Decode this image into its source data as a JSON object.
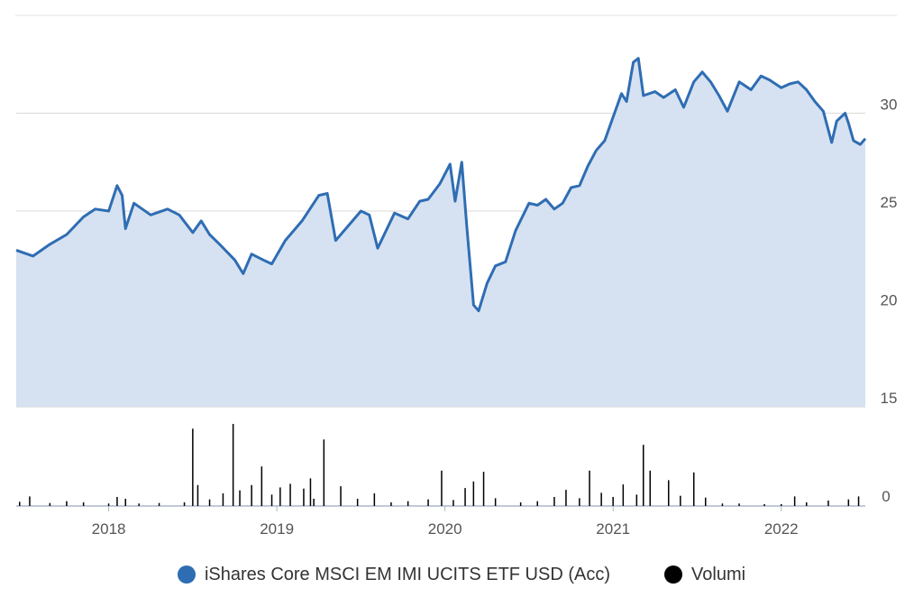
{
  "chart_data": {
    "type": "line",
    "price": {
      "name": "iShares Core MSCI EM IMI UCITS ETF USD (Acc)",
      "color": "#2f6db3",
      "fill": "#d6e2f1",
      "points": [
        [
          2017.45,
          23.0
        ],
        [
          2017.55,
          22.7
        ],
        [
          2017.65,
          23.3
        ],
        [
          2017.75,
          23.8
        ],
        [
          2017.85,
          24.7
        ],
        [
          2017.92,
          25.1
        ],
        [
          2018.0,
          25.0
        ],
        [
          2018.05,
          26.3
        ],
        [
          2018.08,
          25.8
        ],
        [
          2018.1,
          24.1
        ],
        [
          2018.15,
          25.4
        ],
        [
          2018.25,
          24.8
        ],
        [
          2018.35,
          25.1
        ],
        [
          2018.42,
          24.8
        ],
        [
          2018.5,
          23.9
        ],
        [
          2018.55,
          24.5
        ],
        [
          2018.6,
          23.8
        ],
        [
          2018.66,
          23.3
        ],
        [
          2018.75,
          22.5
        ],
        [
          2018.8,
          21.8
        ],
        [
          2018.85,
          22.8
        ],
        [
          2018.92,
          22.5
        ],
        [
          2018.97,
          22.3
        ],
        [
          2019.05,
          23.5
        ],
        [
          2019.15,
          24.5
        ],
        [
          2019.25,
          25.8
        ],
        [
          2019.3,
          25.9
        ],
        [
          2019.35,
          23.5
        ],
        [
          2019.45,
          24.5
        ],
        [
          2019.5,
          25.0
        ],
        [
          2019.55,
          24.8
        ],
        [
          2019.6,
          23.1
        ],
        [
          2019.7,
          24.9
        ],
        [
          2019.78,
          24.6
        ],
        [
          2019.85,
          25.5
        ],
        [
          2019.9,
          25.6
        ],
        [
          2019.97,
          26.4
        ],
        [
          2020.03,
          27.4
        ],
        [
          2020.06,
          25.5
        ],
        [
          2020.1,
          27.5
        ],
        [
          2020.13,
          24.2
        ],
        [
          2020.17,
          20.2
        ],
        [
          2020.2,
          19.9
        ],
        [
          2020.25,
          21.3
        ],
        [
          2020.3,
          22.2
        ],
        [
          2020.36,
          22.4
        ],
        [
          2020.42,
          24.0
        ],
        [
          2020.5,
          25.4
        ],
        [
          2020.55,
          25.3
        ],
        [
          2020.6,
          25.6
        ],
        [
          2020.65,
          25.1
        ],
        [
          2020.7,
          25.4
        ],
        [
          2020.75,
          26.2
        ],
        [
          2020.8,
          26.3
        ],
        [
          2020.85,
          27.3
        ],
        [
          2020.9,
          28.1
        ],
        [
          2020.95,
          28.6
        ],
        [
          2021.0,
          29.8
        ],
        [
          2021.05,
          31.0
        ],
        [
          2021.08,
          30.6
        ],
        [
          2021.12,
          32.6
        ],
        [
          2021.15,
          32.8
        ],
        [
          2021.18,
          30.9
        ],
        [
          2021.25,
          31.1
        ],
        [
          2021.3,
          30.8
        ],
        [
          2021.37,
          31.2
        ],
        [
          2021.42,
          30.3
        ],
        [
          2021.48,
          31.6
        ],
        [
          2021.53,
          32.1
        ],
        [
          2021.58,
          31.6
        ],
        [
          2021.63,
          30.9
        ],
        [
          2021.68,
          30.1
        ],
        [
          2021.75,
          31.6
        ],
        [
          2021.82,
          31.2
        ],
        [
          2021.88,
          31.9
        ],
        [
          2021.93,
          31.7
        ],
        [
          2022.0,
          31.3
        ],
        [
          2022.05,
          31.5
        ],
        [
          2022.1,
          31.6
        ],
        [
          2022.15,
          31.2
        ],
        [
          2022.2,
          30.6
        ],
        [
          2022.25,
          30.1
        ],
        [
          2022.3,
          28.5
        ],
        [
          2022.33,
          29.6
        ],
        [
          2022.38,
          30.0
        ],
        [
          2022.4,
          29.5
        ],
        [
          2022.43,
          28.6
        ],
        [
          2022.47,
          28.4
        ],
        [
          2022.5,
          28.7
        ]
      ]
    },
    "volume": {
      "name": "Volumi",
      "color": "#000000",
      "max": 14,
      "points": [
        [
          2017.47,
          0.7
        ],
        [
          2017.53,
          1.6
        ],
        [
          2017.65,
          0.5
        ],
        [
          2017.75,
          0.8
        ],
        [
          2017.85,
          0.6
        ],
        [
          2018.0,
          0.4
        ],
        [
          2018.05,
          1.5
        ],
        [
          2018.1,
          1.2
        ],
        [
          2018.18,
          0.4
        ],
        [
          2018.3,
          0.5
        ],
        [
          2018.45,
          0.6
        ],
        [
          2018.5,
          12.9
        ],
        [
          2018.53,
          3.5
        ],
        [
          2018.6,
          1.1
        ],
        [
          2018.68,
          2.1
        ],
        [
          2018.74,
          13.7
        ],
        [
          2018.78,
          2.6
        ],
        [
          2018.85,
          3.5
        ],
        [
          2018.91,
          6.6
        ],
        [
          2018.97,
          1.9
        ],
        [
          2019.02,
          3.1
        ],
        [
          2019.08,
          3.7
        ],
        [
          2019.16,
          2.9
        ],
        [
          2019.2,
          4.6
        ],
        [
          2019.22,
          1.2
        ],
        [
          2019.28,
          11.1
        ],
        [
          2019.38,
          3.3
        ],
        [
          2019.48,
          1.2
        ],
        [
          2019.58,
          2.1
        ],
        [
          2019.68,
          0.6
        ],
        [
          2019.78,
          0.8
        ],
        [
          2019.9,
          1.1
        ],
        [
          2019.98,
          5.9
        ],
        [
          2020.05,
          1.0
        ],
        [
          2020.12,
          3.0
        ],
        [
          2020.17,
          4.1
        ],
        [
          2020.23,
          5.7
        ],
        [
          2020.3,
          1.3
        ],
        [
          2020.45,
          0.6
        ],
        [
          2020.55,
          0.8
        ],
        [
          2020.65,
          1.5
        ],
        [
          2020.72,
          2.7
        ],
        [
          2020.8,
          1.3
        ],
        [
          2020.86,
          5.9
        ],
        [
          2020.93,
          2.2
        ],
        [
          2021.0,
          1.5
        ],
        [
          2021.06,
          3.6
        ],
        [
          2021.14,
          1.9
        ],
        [
          2021.18,
          10.2
        ],
        [
          2021.22,
          5.9
        ],
        [
          2021.33,
          4.3
        ],
        [
          2021.4,
          1.7
        ],
        [
          2021.48,
          5.6
        ],
        [
          2021.55,
          1.4
        ],
        [
          2021.65,
          0.4
        ],
        [
          2021.75,
          0.4
        ],
        [
          2021.9,
          0.3
        ],
        [
          2022.0,
          0.3
        ],
        [
          2022.08,
          1.6
        ],
        [
          2022.15,
          0.6
        ],
        [
          2022.28,
          0.9
        ],
        [
          2022.4,
          1.1
        ],
        [
          2022.46,
          1.6
        ]
      ]
    },
    "x_axis": {
      "range": [
        2017.45,
        2022.5
      ],
      "ticks": [
        2018,
        2019,
        2020,
        2021,
        2022
      ]
    },
    "y_axis_price": {
      "range": [
        15,
        35
      ],
      "ticks": [
        15,
        20,
        25,
        30
      ]
    },
    "y_axis_volume": {
      "ticks": [
        0
      ]
    },
    "grid": true,
    "legend_position": "bottom-center",
    "legend": [
      {
        "label": "iShares Core MSCI EM IMI UCITS ETF USD (Acc)",
        "color": "#2f6db3"
      },
      {
        "label": "Volumi",
        "color": "#000000"
      }
    ]
  }
}
